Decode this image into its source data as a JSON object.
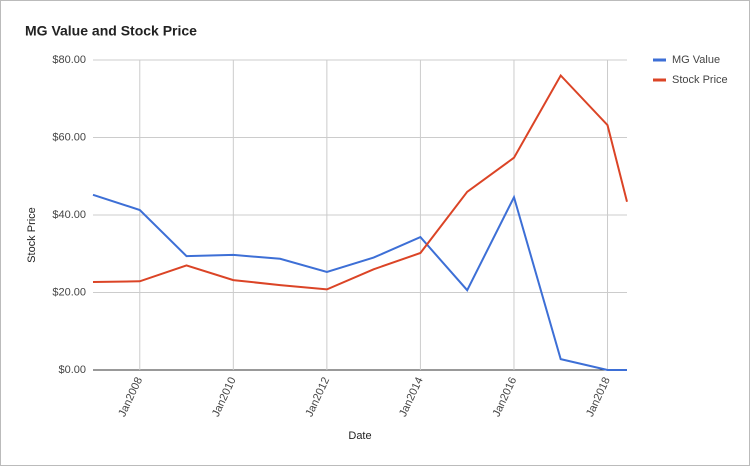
{
  "chart_data": {
    "type": "line",
    "title": "MG Value and Stock Price",
    "x_label": "Date",
    "y_label": "Stock Price",
    "x": [
      "2007-01",
      "2008-01",
      "2009-01",
      "2010-01",
      "2011-01",
      "2012-01",
      "2013-01",
      "2014-01",
      "2015-01",
      "2016-01",
      "2017-01",
      "2018-01",
      "2018-06"
    ],
    "series": [
      {
        "name": "MG Value",
        "color": "#3d6fd6",
        "values": [
          45.2,
          41.3,
          29.4,
          29.7,
          28.7,
          25.3,
          29.0,
          34.3,
          20.6,
          44.6,
          2.8,
          0,
          0
        ]
      },
      {
        "name": "Stock Price",
        "color": "#db4426",
        "values": [
          22.7,
          22.9,
          27.0,
          23.2,
          21.9,
          20.8,
          26.0,
          30.2,
          46.0,
          54.8,
          76.0,
          63.2,
          43.4
        ]
      }
    ],
    "xlim": [
      "2007-01",
      "2018-06"
    ],
    "xticks": [
      {
        "value": "2008-01",
        "label": "Jan2008"
      },
      {
        "value": "2010-01",
        "label": "Jan2010"
      },
      {
        "value": "2012-01",
        "label": "Jan2012"
      },
      {
        "value": "2014-01",
        "label": "Jan2014"
      },
      {
        "value": "2016-01",
        "label": "Jan2016"
      },
      {
        "value": "2018-01",
        "label": "Jan2018"
      }
    ],
    "ylim": [
      0,
      80
    ],
    "yticks": [
      {
        "value": 0,
        "label": "$0.00"
      },
      {
        "value": 20,
        "label": "$20.00"
      },
      {
        "value": 40,
        "label": "$40.00"
      },
      {
        "value": 60,
        "label": "$60.00"
      },
      {
        "value": 80,
        "label": "$80.00"
      }
    ],
    "grid": true,
    "legend": "right"
  }
}
